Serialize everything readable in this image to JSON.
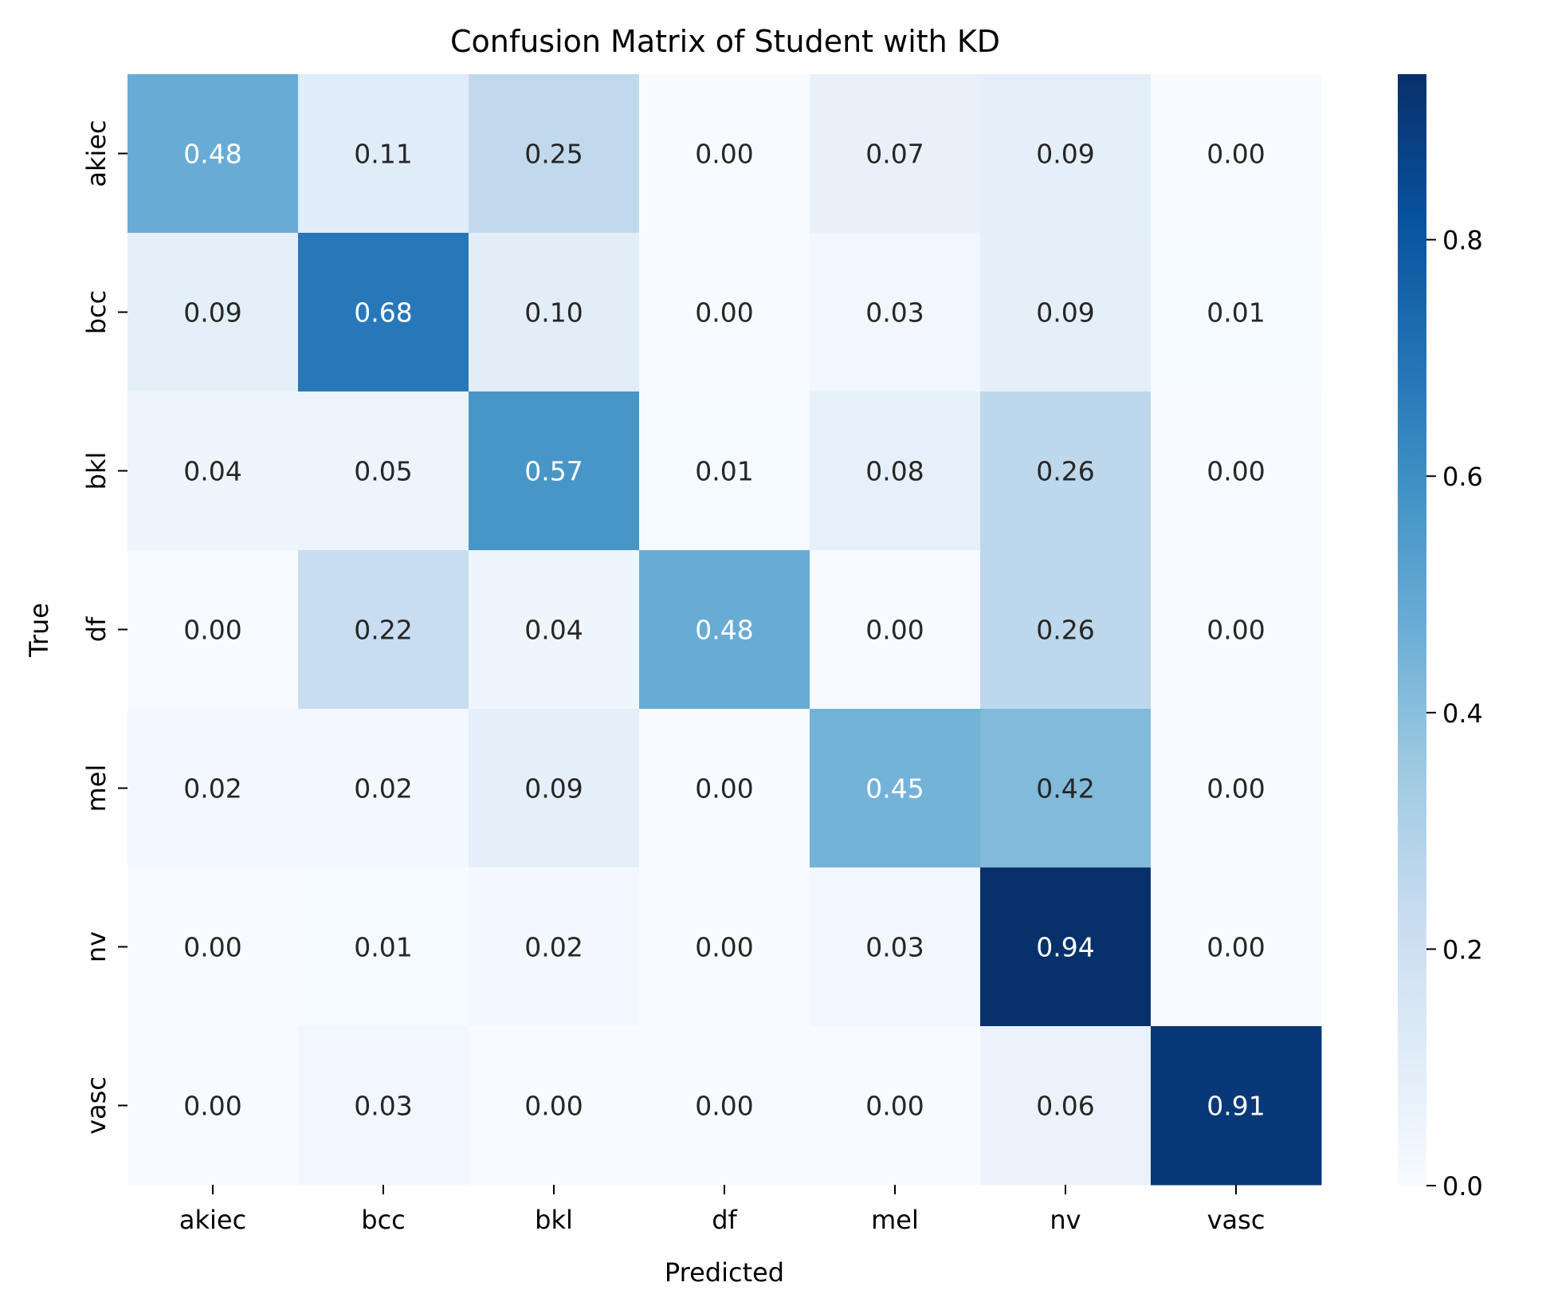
{
  "chart_data": {
    "type": "heatmap",
    "title": "Confusion Matrix of Student with KD",
    "xlabel": "Predicted",
    "ylabel": "True",
    "x_categories": [
      "akiec",
      "bcc",
      "bkl",
      "df",
      "mel",
      "nv",
      "vasc"
    ],
    "y_categories": [
      "akiec",
      "bcc",
      "bkl",
      "df",
      "mel",
      "nv",
      "vasc"
    ],
    "values": [
      [
        0.48,
        0.11,
        0.25,
        0.0,
        0.07,
        0.09,
        0.0
      ],
      [
        0.09,
        0.68,
        0.1,
        0.0,
        0.03,
        0.09,
        0.01
      ],
      [
        0.04,
        0.05,
        0.57,
        0.01,
        0.08,
        0.26,
        0.0
      ],
      [
        0.0,
        0.22,
        0.04,
        0.48,
        0.0,
        0.26,
        0.0
      ],
      [
        0.02,
        0.02,
        0.09,
        0.0,
        0.45,
        0.42,
        0.0
      ],
      [
        0.0,
        0.01,
        0.02,
        0.0,
        0.03,
        0.94,
        0.0
      ],
      [
        0.0,
        0.03,
        0.0,
        0.0,
        0.0,
        0.06,
        0.91
      ]
    ],
    "value_format": "0.00",
    "colormap": "Blues",
    "colorbar": {
      "range": [
        0.0,
        0.94
      ],
      "ticks": [
        0.0,
        0.2,
        0.4,
        0.6,
        0.8
      ],
      "tick_labels": [
        "0.0",
        "0.2",
        "0.4",
        "0.6",
        "0.8"
      ]
    },
    "annotation_colors": {
      "light": "#ffffff",
      "dark": "#262626"
    },
    "grid": false
  }
}
